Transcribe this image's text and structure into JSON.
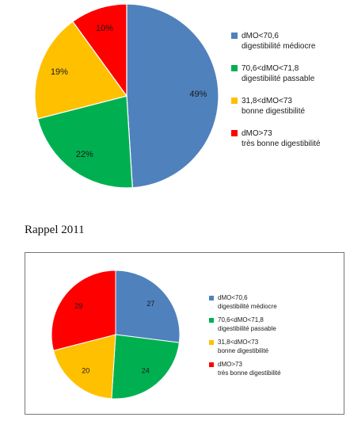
{
  "section_title": "Rappel 2011",
  "chart_data": [
    {
      "type": "pie",
      "unit": "%",
      "series": [
        {
          "line1": "dMO<70,6",
          "line2": "digestibilité médiocre",
          "value": 49,
          "label": "49%",
          "color": "#4f81bd"
        },
        {
          "line1": "70,6<dMO<71,8",
          "line2": "digestibilité passable",
          "value": 22,
          "label": "22%",
          "color": "#00b050"
        },
        {
          "line1": "31,8<dMO<73",
          "line2": "bonne digestibilité",
          "value": 19,
          "label": "19%",
          "color": "#ffc000"
        },
        {
          "line1": "dMO>73",
          "line2": "très bonne digestibilité",
          "value": 10,
          "label": "10%",
          "color": "#ff0000"
        }
      ],
      "legend_position": "right"
    },
    {
      "type": "pie",
      "series": [
        {
          "line1": "dMO<70,6",
          "line2": "digestibilité médiocre",
          "value": 27,
          "label": "27",
          "color": "#4f81bd"
        },
        {
          "line1": "70,6<dMO<71,8",
          "line2": "digestibilité passable",
          "value": 24,
          "label": "24",
          "color": "#00b050"
        },
        {
          "line1": "31,8<dMO<73",
          "line2": "bonne digestibilité",
          "value": 20,
          "label": "20",
          "color": "#ffc000"
        },
        {
          "line1": "dMO>73",
          "line2": "très bonne digestibilité",
          "value": 29,
          "label": "29",
          "color": "#ff0000"
        }
      ],
      "legend_position": "right"
    }
  ]
}
